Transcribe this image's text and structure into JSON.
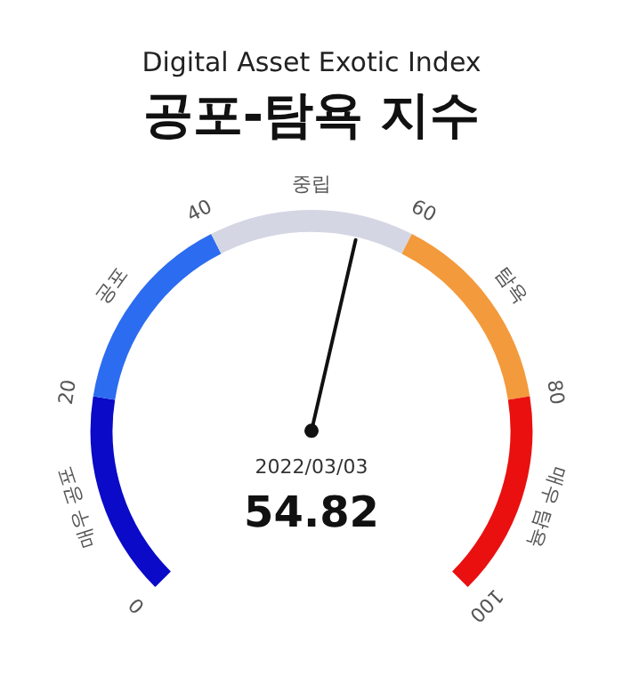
{
  "chart_data": {
    "type": "donut",
    "subtitle": "Digital Asset Exotic Index",
    "title": "공포-탐욕 지수",
    "categories": [
      "매우 공포",
      "공포",
      "중립",
      "탐욕",
      "매우 탐욕"
    ],
    "values": [
      20,
      20,
      20,
      20,
      20
    ],
    "colors": [
      "#0a0ac8",
      "#2c6cf0",
      "#d4d6e4",
      "#f39a3c",
      "#ea1010"
    ],
    "needle": "중립",
    "annotations": [
      "0",
      "20",
      "40",
      "60",
      "80",
      "100",
      "2022/03/03",
      "54.82"
    ],
    "legend": false
  }
}
